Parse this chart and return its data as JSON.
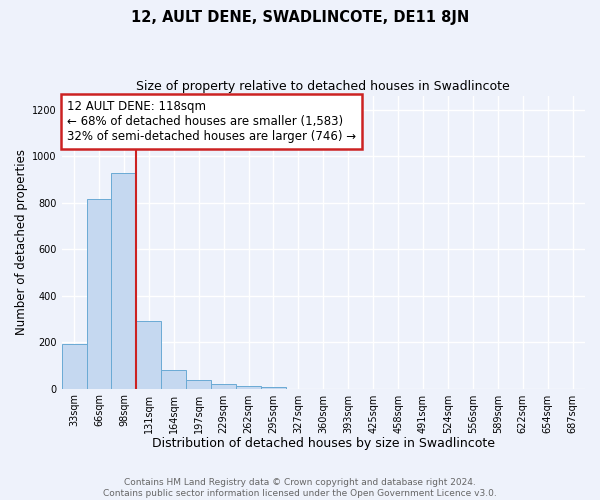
{
  "title": "12, AULT DENE, SWADLINCOTE, DE11 8JN",
  "subtitle": "Size of property relative to detached houses in Swadlincote",
  "xlabel": "Distribution of detached houses by size in Swadlincote",
  "ylabel": "Number of detached properties",
  "bar_color": "#c5d8f0",
  "bar_edge_color": "#6aaad4",
  "categories": [
    "33sqm",
    "66sqm",
    "98sqm",
    "131sqm",
    "164sqm",
    "197sqm",
    "229sqm",
    "262sqm",
    "295sqm",
    "327sqm",
    "360sqm",
    "393sqm",
    "425sqm",
    "458sqm",
    "491sqm",
    "524sqm",
    "556sqm",
    "589sqm",
    "622sqm",
    "654sqm",
    "687sqm"
  ],
  "values": [
    190,
    815,
    925,
    290,
    80,
    38,
    18,
    12,
    8,
    0,
    0,
    0,
    0,
    0,
    0,
    0,
    0,
    0,
    0,
    0,
    0
  ],
  "vline_x": 2.5,
  "vline_color": "#cc2222",
  "annotation_box_text": "12 AULT DENE: 118sqm\n← 68% of detached houses are smaller (1,583)\n32% of semi-detached houses are larger (746) →",
  "ylim": [
    0,
    1260
  ],
  "yticks": [
    0,
    200,
    400,
    600,
    800,
    1000,
    1200
  ],
  "background_color": "#eef2fb",
  "grid_color": "#ffffff",
  "footer_text": "Contains HM Land Registry data © Crown copyright and database right 2024.\nContains public sector information licensed under the Open Government Licence v3.0.",
  "title_fontsize": 10.5,
  "subtitle_fontsize": 9,
  "xlabel_fontsize": 9,
  "ylabel_fontsize": 8.5,
  "tick_fontsize": 7,
  "annotation_fontsize": 8.5,
  "footer_fontsize": 6.5
}
